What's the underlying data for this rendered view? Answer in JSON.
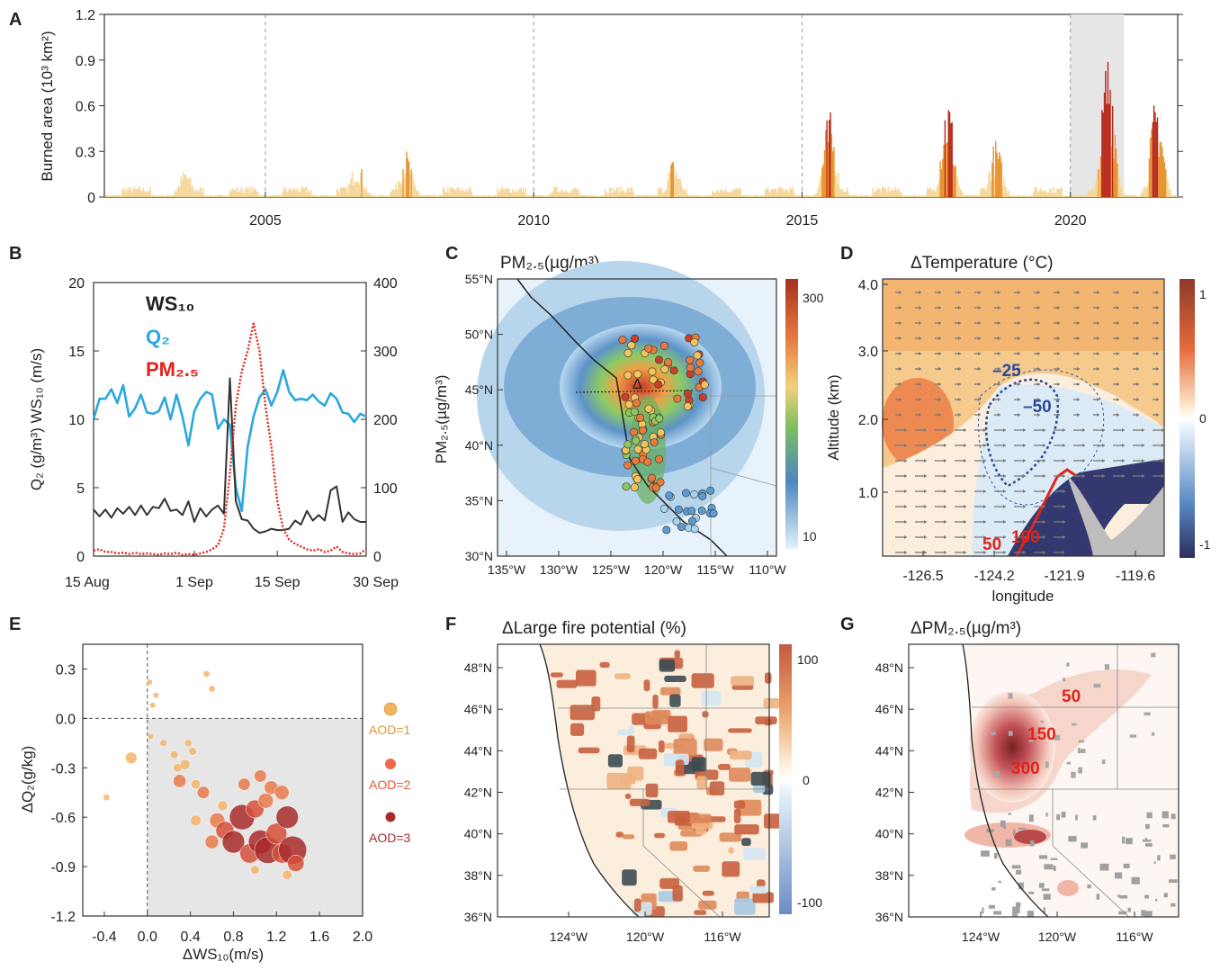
{
  "colors": {
    "burn_low": "#f5d79a",
    "burn_mid": "#e8922e",
    "burn_high": "#b82a1a",
    "ws": "#333333",
    "q2": "#29a8df",
    "pm": "#e0241a",
    "shade": "#e6e6e6"
  },
  "chart_data": [
    {
      "id": "A",
      "type": "bar",
      "panel_label": "A",
      "ylabel": "Burned area (10³ km²)",
      "yticks": [
        "0",
        "0.3",
        "0.6",
        "0.9",
        "1.2"
      ],
      "ylim": [
        0,
        1.2
      ],
      "xlim": [
        2002.0,
        2022.0
      ],
      "xticks": [
        "2005",
        "2010",
        "2015",
        "2020"
      ],
      "dashed_lines_at": [
        2005,
        2010,
        2015,
        2020
      ],
      "shaded_range": [
        2020.0,
        2021.0
      ],
      "peaks": [
        {
          "x": 2003.5,
          "value": 0.19
        },
        {
          "x": 2006.7,
          "value": 0.25
        },
        {
          "x": 2007.6,
          "value": 0.32
        },
        {
          "x": 2012.6,
          "value": 0.26
        },
        {
          "x": 2015.5,
          "value": 0.57
        },
        {
          "x": 2017.7,
          "value": 0.71
        },
        {
          "x": 2018.6,
          "value": 0.38
        },
        {
          "x": 2020.7,
          "value": 1.05
        },
        {
          "x": 2021.6,
          "value": 0.7
        }
      ]
    },
    {
      "id": "B",
      "type": "line",
      "panel_label": "B",
      "xticks": [
        "15 Aug",
        "1 Sep",
        "15 Sep",
        "30 Sep"
      ],
      "ylabel_left": "Q₂ (g/m³) WS₁₀ (m/s)",
      "yticks_left": [
        "0",
        "5",
        "10",
        "15",
        "20"
      ],
      "ylim_left": [
        0,
        20
      ],
      "yticks_right": [
        "0",
        "100",
        "200",
        "300",
        "400"
      ],
      "ylim_right": [
        0,
        400
      ],
      "legend": [
        "WS₁₀",
        "Q₂",
        "PM₂.₅"
      ],
      "days": 47,
      "series": [
        {
          "name": "Q₂",
          "axis": "left",
          "values": [
            10,
            11.5,
            11.5,
            12.2,
            11.2,
            12.5,
            10.2,
            10.8,
            11.8,
            10.5,
            10.4,
            10.6,
            11.6,
            10.0,
            11.8,
            10.2,
            8.1,
            10.6,
            11.5,
            12.0,
            11.8,
            9.3,
            10.0,
            9.6,
            5.0,
            3.3,
            8.0,
            10.2,
            11.6,
            12.2,
            11.0,
            12.0,
            13.6,
            12.0,
            11.4,
            11.5,
            11.4,
            11.8,
            11.3,
            11.0,
            11.9,
            11.5,
            10.5,
            10.4,
            9.8,
            10.4,
            10.2
          ]
        },
        {
          "name": "WS₁₀",
          "axis": "left",
          "values": [
            3.4,
            2.9,
            3.4,
            2.8,
            3.5,
            3.1,
            3.6,
            3.0,
            3.7,
            3.0,
            3.6,
            3.5,
            4.2,
            3.3,
            3.4,
            3.0,
            4.0,
            2.5,
            3.5,
            2.9,
            3.4,
            3.7,
            3.1,
            13.0,
            4.0,
            2.7,
            2.6,
            2.0,
            1.7,
            1.8,
            2.0,
            1.9,
            1.9,
            2.0,
            2.6,
            2.3,
            3.3,
            2.6,
            3.0,
            2.6,
            4.8,
            5.1,
            2.5,
            3.2,
            2.7,
            2.5,
            2.5
          ]
        },
        {
          "name": "PM₂.₅",
          "axis": "right",
          "values": [
            8,
            10,
            6,
            6,
            4,
            5,
            3,
            5,
            3,
            4,
            3,
            2,
            4,
            3,
            5,
            2,
            3,
            2,
            4,
            6,
            10,
            16,
            40,
            120,
            220,
            270,
            300,
            340,
            300,
            220,
            160,
            80,
            40,
            24,
            18,
            14,
            10,
            8,
            10,
            6,
            8,
            14,
            6,
            4,
            3,
            4,
            10
          ]
        }
      ]
    },
    {
      "id": "C",
      "type": "heatmap",
      "panel_label": "C",
      "title": "PM₂.₅(µg/m³)",
      "ylabel": "PM₂.₅(µg/m³)",
      "xticks": [
        "135°W",
        "130°W",
        "125°W",
        "120°W",
        "115°W",
        "110°W"
      ],
      "yticks": [
        "55°N",
        "50°N",
        "45°N",
        "40°N",
        "35°N",
        "30°N"
      ],
      "colorbar_labels": [
        "300",
        "10"
      ],
      "marker": "Δ"
    },
    {
      "id": "D",
      "type": "heatmap",
      "panel_label": "D",
      "title": "ΔTemperature (°C)",
      "xlabel": "longitude",
      "ylabel": "Altitude (km)",
      "xticks": [
        "-126.5",
        "-124.2",
        "-121.9",
        "-119.6"
      ],
      "yticks": [
        "4.0",
        "3.0",
        "2.0",
        "1.0"
      ],
      "contour_labels": [
        "–25",
        "–50",
        "50",
        "100"
      ],
      "colorbar_labels": [
        "1",
        "0",
        "-1"
      ]
    },
    {
      "id": "E",
      "type": "scatter",
      "panel_label": "E",
      "xlabel": "ΔWS₁₀(m/s)",
      "ylabel": "ΔQ₂(g/kg)",
      "xticks": [
        "-0.4",
        "0.0",
        "0.4",
        "0.8",
        "1.2",
        "1.6",
        "2.0"
      ],
      "xlim": [
        -0.6,
        2.0
      ],
      "yticks": [
        "0.3",
        "0.0",
        "-0.3",
        "-0.6",
        "-0.9",
        "-1.2"
      ],
      "ylim": [
        -1.2,
        0.45
      ],
      "size_legend": [
        "AOD=1",
        "AOD=2",
        "AOD=3"
      ],
      "points": [
        {
          "x": -0.38,
          "y": -0.48,
          "aod": 0.4
        },
        {
          "x": -0.15,
          "y": -0.24,
          "aod": 1.1
        },
        {
          "x": 0.02,
          "y": 0.22,
          "aod": 0.3
        },
        {
          "x": 0.08,
          "y": 0.14,
          "aod": 0.3
        },
        {
          "x": 0.03,
          "y": -0.11,
          "aod": 0.3
        },
        {
          "x": 0.05,
          "y": 0.08,
          "aod": 0.3
        },
        {
          "x": 0.55,
          "y": 0.27,
          "aod": 0.4
        },
        {
          "x": 0.6,
          "y": 0.18,
          "aod": 0.4
        },
        {
          "x": 0.15,
          "y": -0.15,
          "aod": 0.5
        },
        {
          "x": 0.25,
          "y": -0.22,
          "aod": 0.6
        },
        {
          "x": 0.28,
          "y": -0.3,
          "aod": 0.7
        },
        {
          "x": 0.35,
          "y": -0.28,
          "aod": 0.9
        },
        {
          "x": 0.42,
          "y": -0.2,
          "aod": 0.6
        },
        {
          "x": 0.38,
          "y": -0.15,
          "aod": 0.5
        },
        {
          "x": 0.45,
          "y": -0.4,
          "aod": 0.8
        },
        {
          "x": 0.3,
          "y": -0.38,
          "aod": 1.3
        },
        {
          "x": 0.52,
          "y": -0.45,
          "aod": 1.2
        },
        {
          "x": 0.45,
          "y": -0.62,
          "aod": 1.0
        },
        {
          "x": 0.65,
          "y": -0.62,
          "aod": 1.6
        },
        {
          "x": 0.72,
          "y": -0.68,
          "aod": 2.0
        },
        {
          "x": 0.6,
          "y": -0.75,
          "aod": 1.4
        },
        {
          "x": 0.8,
          "y": -0.75,
          "aod": 2.6
        },
        {
          "x": 0.88,
          "y": -0.6,
          "aod": 3.0
        },
        {
          "x": 0.95,
          "y": -0.82,
          "aod": 2.2
        },
        {
          "x": 1.05,
          "y": -0.75,
          "aod": 2.8
        },
        {
          "x": 1.0,
          "y": -0.55,
          "aod": 2.0
        },
        {
          "x": 1.12,
          "y": -0.8,
          "aod": 3.2
        },
        {
          "x": 1.2,
          "y": -0.7,
          "aod": 2.4
        },
        {
          "x": 1.25,
          "y": -0.82,
          "aod": 2.2
        },
        {
          "x": 1.35,
          "y": -0.8,
          "aod": 3.4
        },
        {
          "x": 1.3,
          "y": -0.6,
          "aod": 2.6
        },
        {
          "x": 1.38,
          "y": -0.88,
          "aod": 1.8
        },
        {
          "x": 1.15,
          "y": -0.42,
          "aod": 1.4
        },
        {
          "x": 1.1,
          "y": -0.5,
          "aod": 1.6
        },
        {
          "x": 1.25,
          "y": -0.45,
          "aod": 1.5
        },
        {
          "x": 0.9,
          "y": -0.4,
          "aod": 1.2
        },
        {
          "x": 1.05,
          "y": -0.35,
          "aod": 1.2
        },
        {
          "x": 1.3,
          "y": -0.95,
          "aod": 0.8
        },
        {
          "x": 0.7,
          "y": -0.53,
          "aod": 0.9
        },
        {
          "x": 1.0,
          "y": -0.92,
          "aod": 0.7
        }
      ]
    },
    {
      "id": "F",
      "type": "heatmap",
      "panel_label": "F",
      "title": "ΔLarge fire potential (%)",
      "xticks": [
        "124°W",
        "120°W",
        "116°W"
      ],
      "yticks": [
        "48°N",
        "46°N",
        "44°N",
        "42°N",
        "40°N",
        "38°N",
        "36°N"
      ],
      "colorbar_labels": [
        "100",
        "0",
        "-100"
      ]
    },
    {
      "id": "G",
      "type": "heatmap",
      "panel_label": "G",
      "title": "ΔPM₂.₅(µg/m³)",
      "xticks": [
        "124°W",
        "120°W",
        "116°W"
      ],
      "yticks": [
        "48°N",
        "46°N",
        "44°N",
        "42°N",
        "40°N",
        "38°N",
        "36°N"
      ],
      "contour_labels": [
        "50",
        "150",
        "300"
      ]
    }
  ]
}
